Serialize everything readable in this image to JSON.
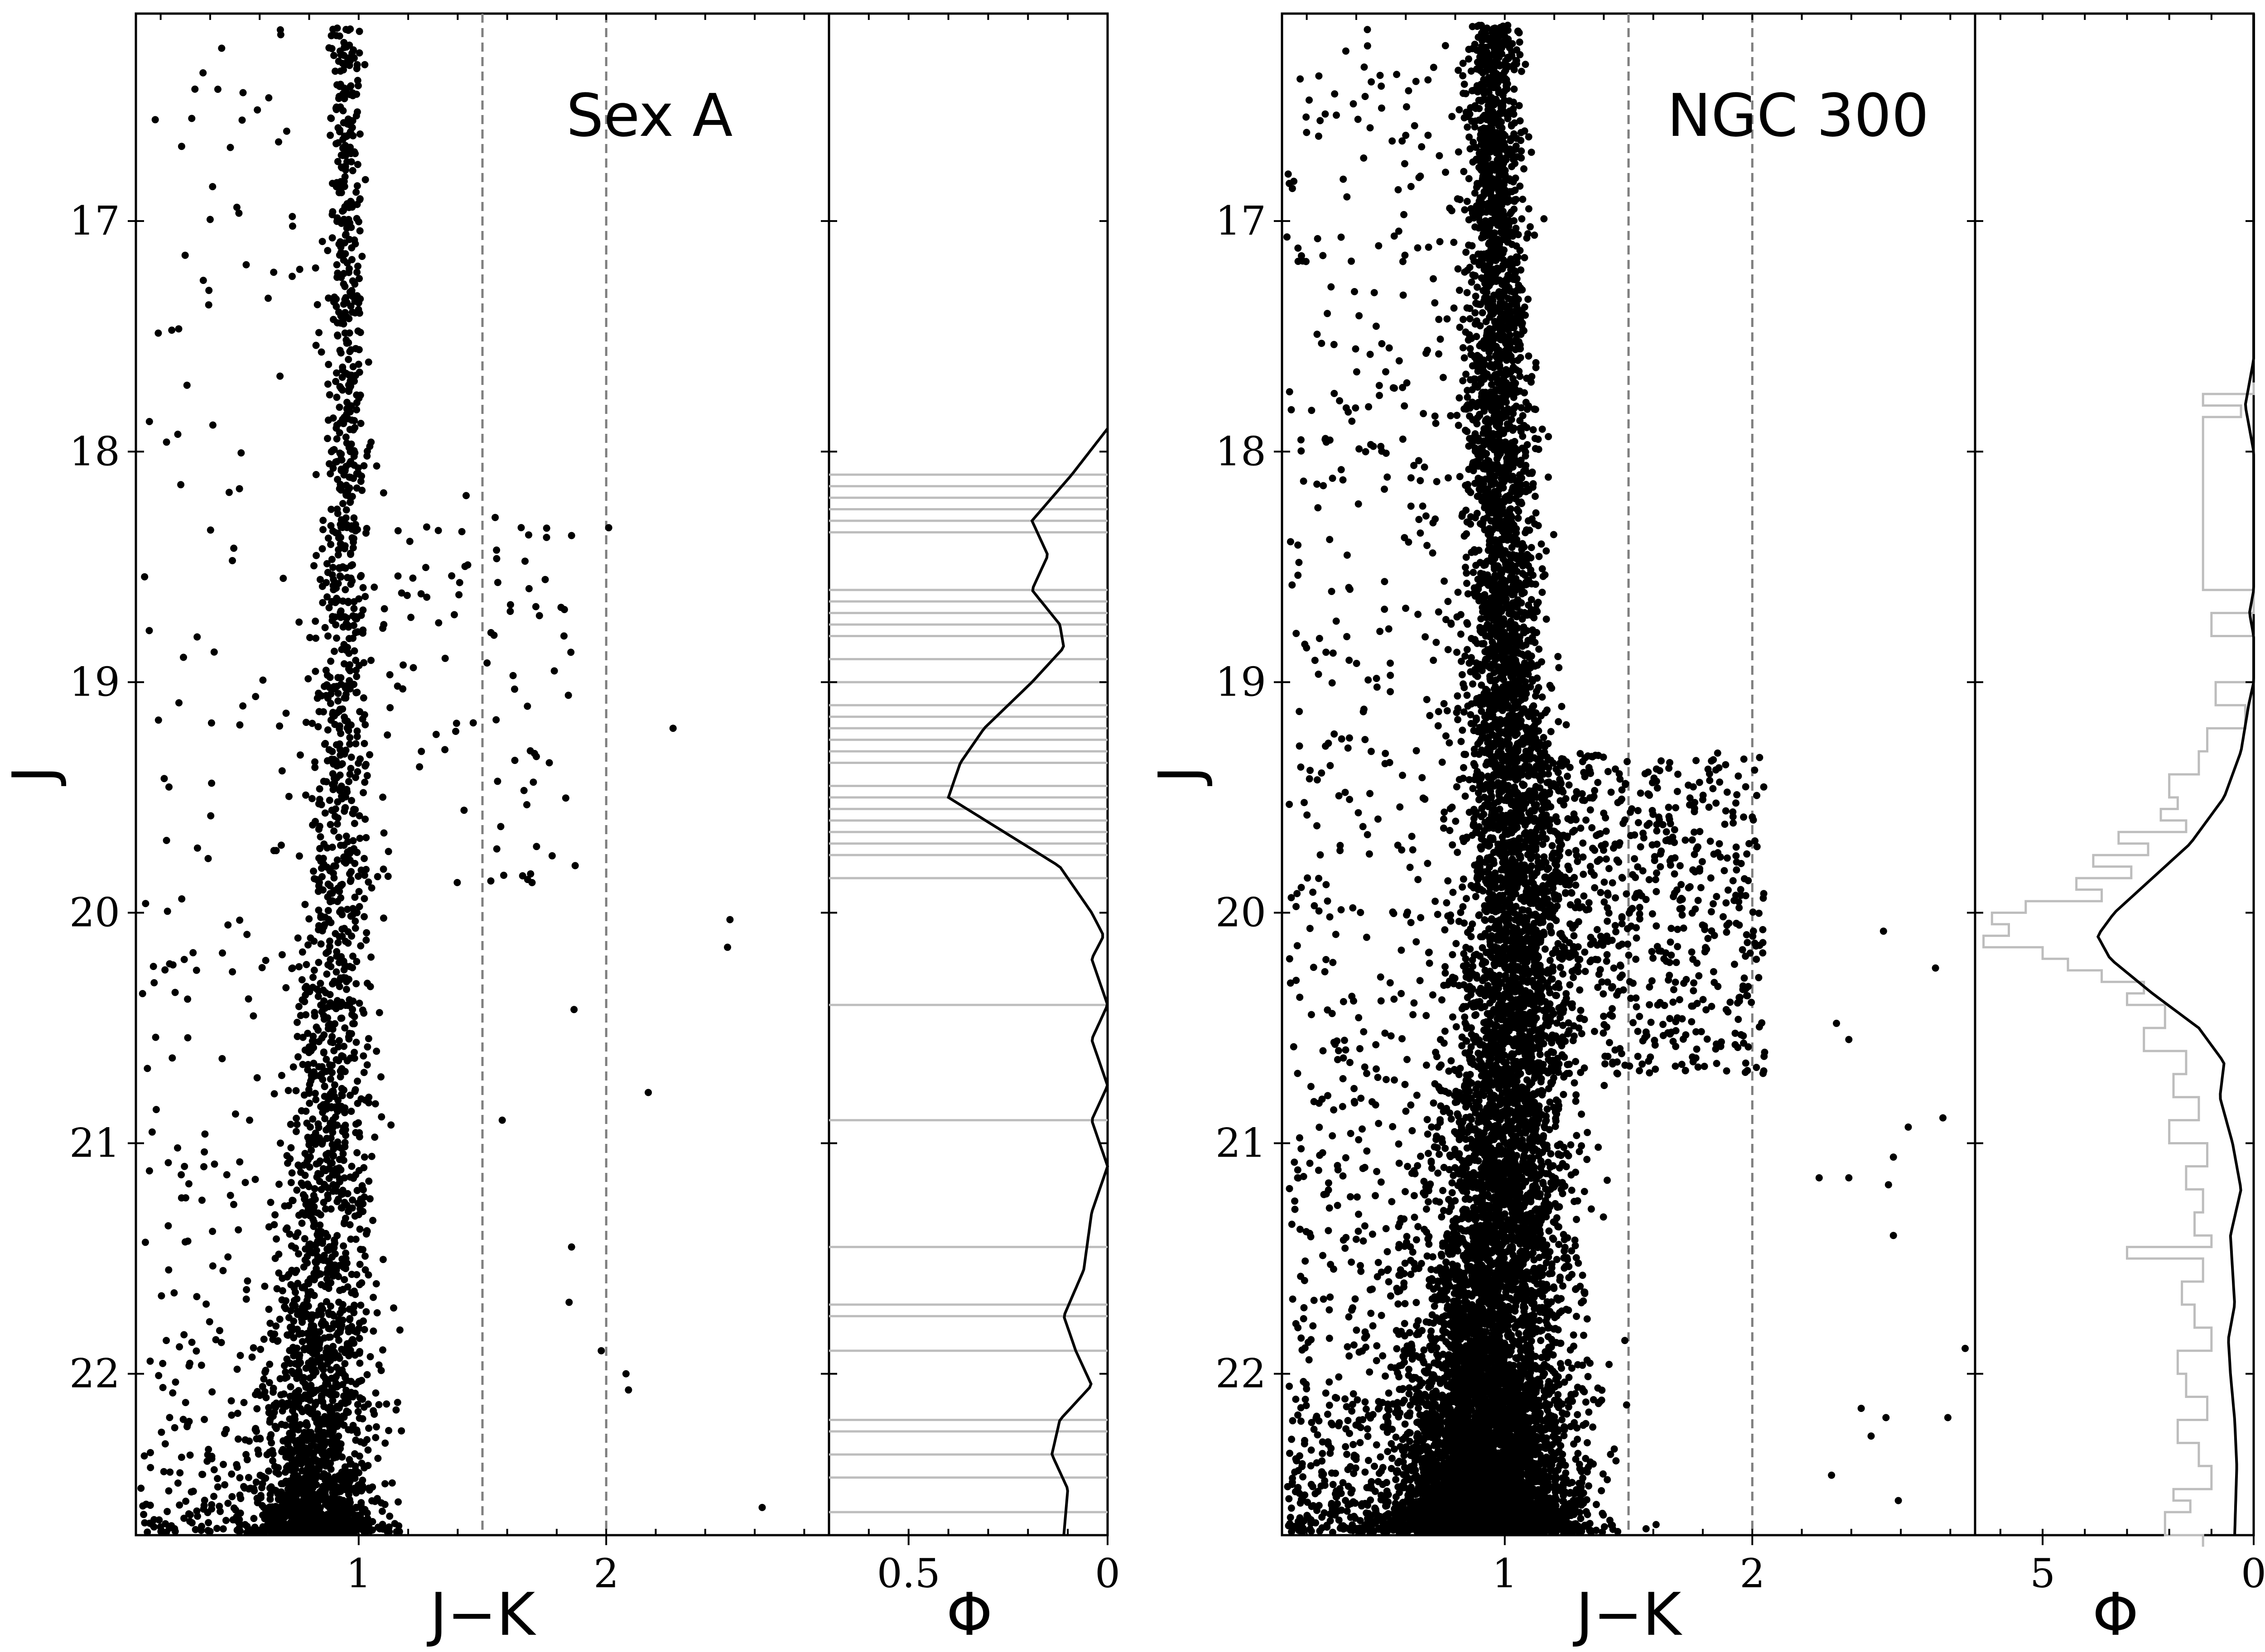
{
  "chart_data": [
    {
      "type": "scatter",
      "panel": "cmd",
      "title": "Sex A",
      "xlabel": "J−K",
      "ylabel": "J",
      "xlim": [
        0.1,
        2.9
      ],
      "ylim": [
        22.7,
        16.1
      ],
      "y_inverted": true,
      "xticks": [
        {
          "v": 1,
          "label": "1"
        },
        {
          "v": 2,
          "label": "2"
        }
      ],
      "yticks": [
        {
          "v": 17,
          "label": "17"
        },
        {
          "v": 18,
          "label": "18"
        },
        {
          "v": 19,
          "label": "19"
        },
        {
          "v": 20,
          "label": "20"
        },
        {
          "v": 21,
          "label": "21"
        },
        {
          "v": 22,
          "label": "22"
        }
      ],
      "guide_lines_x": [
        1.5,
        2.0
      ],
      "point_model": {
        "n_points": 3600,
        "seed": 11,
        "sequence_blue_edge": {
          "j": [
            16.2,
            18.0,
            19.0,
            20.0,
            21.0,
            22.0,
            22.7
          ],
          "color": [
            0.95,
            0.95,
            0.93,
            0.92,
            0.88,
            0.84,
            0.82
          ]
        },
        "sequence_width": {
          "j": [
            16.2,
            19.0,
            20.0,
            21.0,
            22.0,
            22.7
          ],
          "sigma": [
            0.03,
            0.05,
            0.07,
            0.09,
            0.11,
            0.13
          ]
        },
        "density_exponent": 3.4,
        "blue_scatter_fraction": 0.12,
        "red_tail": {
          "count": 95,
          "j_range": [
            18.1,
            19.9
          ],
          "color_range": [
            1.1,
            1.9
          ]
        },
        "outliers": [
          [
            2.27,
            19.2
          ],
          [
            2.5,
            20.03
          ],
          [
            2.49,
            20.15
          ],
          [
            2.17,
            20.78
          ],
          [
            2.01,
            18.33
          ],
          [
            2.08,
            22.0
          ],
          [
            2.09,
            22.07
          ],
          [
            1.98,
            21.9
          ],
          [
            2.63,
            22.58
          ],
          [
            1.86,
            21.45
          ],
          [
            1.85,
            21.69
          ],
          [
            1.87,
            20.42
          ],
          [
            1.58,
            20.9
          ]
        ]
      }
    },
    {
      "type": "line",
      "panel": "luminosity-function",
      "xlabel": "Φ",
      "xlim": [
        0.7,
        0.0
      ],
      "ylim": [
        22.7,
        16.1
      ],
      "xticks": [
        {
          "v": 0.5,
          "label": "0.5"
        },
        {
          "v": 0.0,
          "label": "0"
        }
      ],
      "series": [
        {
          "name": "binned distribution",
          "style": "gray spikes",
          "spike_j": [
            18.1,
            18.15,
            18.2,
            18.25,
            18.3,
            18.35,
            18.6,
            18.65,
            18.7,
            18.75,
            18.8,
            18.9,
            19.0,
            19.1,
            19.15,
            19.2,
            19.25,
            19.3,
            19.35,
            19.45,
            19.5,
            19.55,
            19.6,
            19.65,
            19.7,
            19.75,
            19.85,
            20.4,
            20.9,
            21.45,
            21.7,
            21.75,
            21.9,
            22.2,
            22.25,
            22.35,
            22.45,
            22.6
          ]
        },
        {
          "name": "smoothed",
          "style": "black line",
          "j": [
            17.9,
            18.1,
            18.3,
            18.45,
            18.6,
            18.75,
            18.85,
            19.0,
            19.2,
            19.35,
            19.5,
            19.65,
            19.8,
            20.0,
            20.1,
            20.2,
            20.4,
            20.55,
            20.75,
            20.9,
            21.1,
            21.3,
            21.55,
            21.75,
            21.9,
            22.05,
            22.2,
            22.35,
            22.5,
            22.7
          ],
          "phi": [
            0.0,
            0.09,
            0.19,
            0.15,
            0.19,
            0.12,
            0.11,
            0.19,
            0.31,
            0.37,
            0.4,
            0.26,
            0.12,
            0.04,
            0.01,
            0.04,
            0.0,
            0.04,
            0.0,
            0.04,
            0.0,
            0.04,
            0.06,
            0.11,
            0.08,
            0.04,
            0.12,
            0.14,
            0.1,
            0.11
          ]
        }
      ]
    },
    {
      "type": "scatter",
      "panel": "cmd",
      "title": "NGC 300",
      "xlabel": "J−K",
      "ylabel": "J",
      "xlim": [
        0.1,
        2.9
      ],
      "ylim": [
        22.7,
        16.1
      ],
      "y_inverted": true,
      "xticks": [
        {
          "v": 1,
          "label": "1"
        },
        {
          "v": 2,
          "label": "2"
        }
      ],
      "yticks": [
        {
          "v": 17,
          "label": "17"
        },
        {
          "v": 18,
          "label": "18"
        },
        {
          "v": 19,
          "label": "19"
        },
        {
          "v": 20,
          "label": "20"
        },
        {
          "v": 21,
          "label": "21"
        },
        {
          "v": 22,
          "label": "22"
        }
      ],
      "guide_lines_x": [
        1.5,
        2.0
      ],
      "point_model": {
        "n_points": 13000,
        "seed": 29,
        "sequence_blue_edge": {
          "j": [
            16.2,
            18.0,
            19.0,
            20.0,
            21.0,
            22.0,
            22.7
          ],
          "color": [
            0.95,
            0.98,
            1.0,
            1.05,
            1.0,
            0.95,
            0.93
          ]
        },
        "sequence_width": {
          "j": [
            16.2,
            19.0,
            20.0,
            21.0,
            22.0,
            22.7
          ],
          "sigma": [
            0.05,
            0.08,
            0.1,
            0.13,
            0.16,
            0.18
          ]
        },
        "density_exponent": 3.0,
        "blue_scatter_fraction": 0.1,
        "red_tail": {
          "count": 750,
          "j_range": [
            19.3,
            20.7
          ],
          "color_range": [
            1.1,
            2.05
          ]
        },
        "outliers": [
          [
            2.53,
            20.08
          ],
          [
            2.74,
            20.24
          ],
          [
            2.34,
            20.48
          ],
          [
            2.39,
            20.55
          ],
          [
            2.63,
            20.93
          ],
          [
            2.77,
            20.89
          ],
          [
            2.57,
            21.06
          ],
          [
            2.55,
            21.18
          ],
          [
            2.39,
            21.15
          ],
          [
            2.27,
            21.15
          ],
          [
            2.57,
            21.4
          ],
          [
            2.79,
            22.19
          ],
          [
            2.59,
            22.55
          ],
          [
            2.54,
            22.19
          ],
          [
            2.44,
            22.15
          ],
          [
            2.48,
            22.27
          ],
          [
            2.32,
            22.44
          ],
          [
            2.86,
            21.89
          ]
        ]
      }
    },
    {
      "type": "line",
      "panel": "luminosity-function",
      "xlabel": "Φ",
      "xlim": [
        6.6,
        0.0
      ],
      "ylim": [
        22.7,
        16.1
      ],
      "xticks": [
        {
          "v": 5,
          "label": "5"
        },
        {
          "v": 0,
          "label": "0"
        }
      ],
      "series": [
        {
          "name": "binned distribution",
          "style": "gray histogram",
          "j": [
            17.7,
            17.75,
            17.8,
            17.85,
            18.6,
            18.7,
            18.8,
            19.0,
            19.1,
            19.2,
            19.3,
            19.4,
            19.5,
            19.55,
            19.6,
            19.65,
            19.7,
            19.75,
            19.8,
            19.85,
            19.9,
            19.95,
            20.0,
            20.05,
            20.1,
            20.15,
            20.2,
            20.25,
            20.3,
            20.35,
            20.4,
            20.5,
            20.6,
            20.7,
            20.8,
            20.9,
            21.0,
            21.1,
            21.2,
            21.3,
            21.4,
            21.45,
            21.5,
            21.6,
            21.7,
            21.8,
            21.9,
            22.0,
            22.1,
            22.2,
            22.3,
            22.4,
            22.5,
            22.55,
            22.6,
            22.7
          ],
          "phi": [
            0.0,
            1.2,
            0.3,
            1.2,
            0.0,
            1.0,
            0.0,
            0.9,
            0.2,
            1.1,
            1.3,
            2.0,
            1.8,
            2.2,
            1.6,
            3.2,
            2.5,
            3.8,
            2.9,
            4.2,
            3.6,
            5.4,
            6.2,
            5.8,
            6.4,
            5.0,
            4.4,
            3.6,
            2.6,
            3.0,
            2.1,
            2.6,
            1.6,
            1.9,
            1.3,
            2.0,
            1.1,
            1.6,
            1.2,
            1.4,
            1.0,
            3.0,
            1.2,
            1.7,
            1.4,
            1.0,
            1.8,
            1.6,
            1.1,
            1.8,
            1.3,
            1.0,
            1.9,
            1.5,
            2.1,
            1.2
          ]
        },
        {
          "name": "smoothed",
          "style": "black line",
          "j": [
            16.1,
            17.0,
            17.6,
            17.8,
            18.0,
            18.6,
            18.7,
            18.8,
            19.0,
            19.1,
            19.3,
            19.5,
            19.7,
            19.85,
            20.0,
            20.1,
            20.2,
            20.35,
            20.5,
            20.65,
            20.8,
            21.0,
            21.2,
            21.4,
            21.55,
            21.7,
            21.85,
            22.0,
            22.2,
            22.4,
            22.7
          ],
          "phi": [
            0.0,
            0.0,
            0.0,
            0.2,
            0.0,
            0.0,
            0.1,
            0.0,
            0.0,
            0.12,
            0.3,
            0.7,
            1.5,
            2.4,
            3.3,
            3.7,
            3.4,
            2.4,
            1.3,
            0.7,
            0.8,
            0.5,
            0.3,
            0.55,
            0.5,
            0.45,
            0.6,
            0.55,
            0.45,
            0.4,
            0.45
          ]
        }
      ]
    }
  ]
}
